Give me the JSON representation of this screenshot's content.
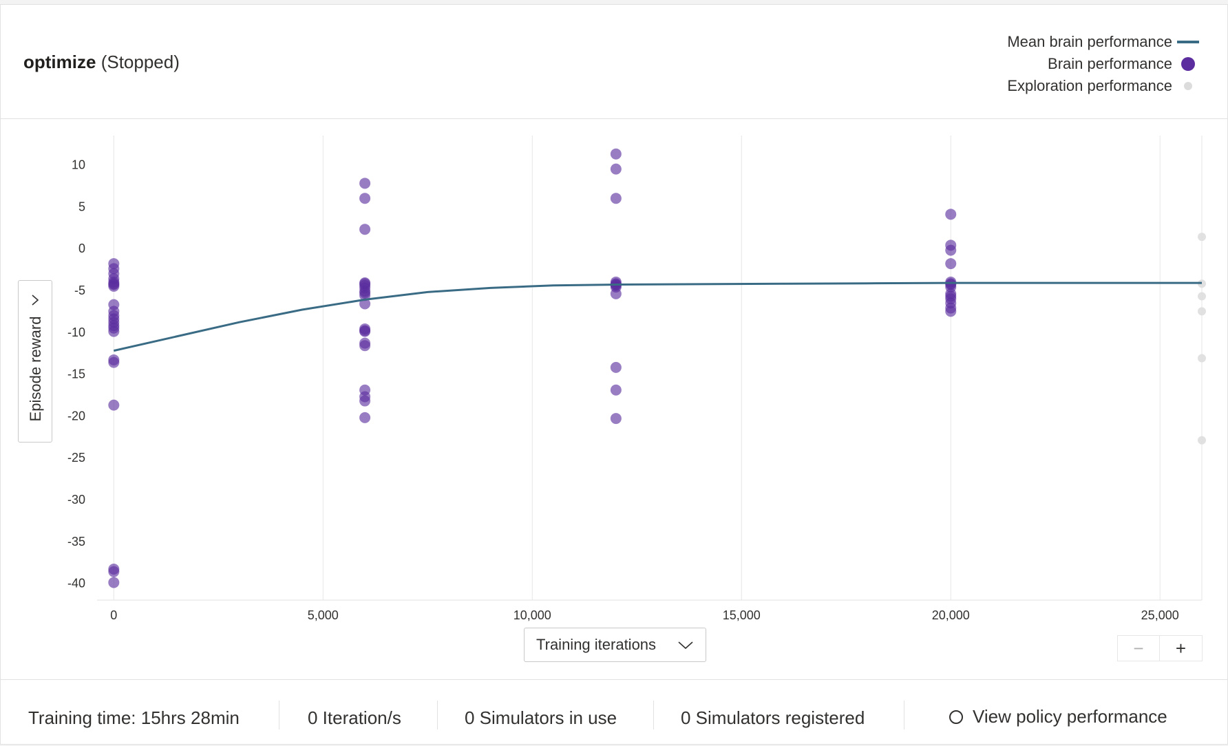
{
  "header": {
    "title": "optimize",
    "status": "(Stopped)"
  },
  "legend": [
    {
      "label": "Mean brain performance",
      "symbol": "line-icon",
      "color": "#3a6b85"
    },
    {
      "label": "Brain performance",
      "symbol": "dot-icon",
      "color": "#5b2d9e"
    },
    {
      "label": "Exploration performance",
      "symbol": "dot-icon",
      "color": "#dcdcdc"
    }
  ],
  "axes": {
    "y_label": "Episode reward",
    "x_select_label": "Training iterations"
  },
  "zoom": {
    "minus": "−",
    "plus": "+"
  },
  "footer": {
    "training_time": "Training time: 15hrs 28min",
    "iteration_rate": "0 Iteration/s",
    "simulators_in_use": "0 Simulators in use",
    "simulators_registered": "0 Simulators registered",
    "policy_link": "View policy performance"
  },
  "chart_data": {
    "type": "scatter",
    "xlabel": "Training iterations",
    "ylabel": "Episode reward",
    "xlim": [
      -400,
      26000
    ],
    "ylim": [
      -42,
      13.5
    ],
    "x_ticks": [
      0,
      5000,
      10000,
      15000,
      20000,
      25000
    ],
    "x_tick_labels": [
      "0",
      "5,000",
      "10,000",
      "15,000",
      "20,000",
      "25,000"
    ],
    "y_ticks": [
      10,
      5,
      0,
      -5,
      -10,
      -15,
      -20,
      -25,
      -30,
      -35,
      -40
    ],
    "grid": "vertical",
    "series": [
      {
        "name": "Mean brain performance",
        "kind": "line",
        "color": "#3a6b85",
        "x": [
          0,
          1500,
          3000,
          4500,
          6000,
          7500,
          9000,
          10500,
          12000,
          14000,
          16000,
          18000,
          20000,
          23000,
          26000
        ],
        "y": [
          -12.2,
          -10.5,
          -8.8,
          -7.3,
          -6.1,
          -5.2,
          -4.7,
          -4.4,
          -4.3,
          -4.25,
          -4.2,
          -4.15,
          -4.1,
          -4.1,
          -4.1
        ]
      },
      {
        "name": "Brain performance",
        "kind": "scatter",
        "color": "#5b2d9e",
        "x": [
          0,
          0,
          0,
          0,
          0,
          0,
          0,
          0,
          0,
          0,
          0,
          0,
          0,
          0,
          0,
          0,
          0,
          0,
          0,
          0,
          0,
          0,
          6000,
          6000,
          6000,
          6000,
          6000,
          6000,
          6000,
          6000,
          6000,
          6000,
          6000,
          6000,
          6000,
          6000,
          6000,
          6000,
          6000,
          6000,
          6000,
          6000,
          12000,
          12000,
          12000,
          12000,
          12000,
          12000,
          12000,
          12000,
          12000,
          12000,
          12000,
          12000,
          20000,
          20000,
          20000,
          20000,
          20000,
          20000,
          20000,
          20000,
          20000,
          20000,
          20000,
          20000,
          20000,
          20000
        ],
        "y": [
          -1.8,
          -2.4,
          -3.0,
          -3.6,
          -4.2,
          -4.5,
          -6.7,
          -7.5,
          -8.0,
          -8.4,
          -9.5,
          -9.9,
          -13.3,
          -13.6,
          -18.7,
          -38.3,
          -38.6,
          -39.9,
          -4.0,
          -4.3,
          -8.8,
          -9.2,
          7.8,
          6.0,
          2.3,
          -4.1,
          -4.4,
          -4.7,
          -5.1,
          -5.6,
          -6.6,
          -9.6,
          -9.9,
          -11.3,
          -11.6,
          -16.9,
          -17.7,
          -18.2,
          -20.2,
          -4.2,
          -5.3,
          -9.8,
          11.3,
          9.5,
          6.0,
          -4.0,
          -4.2,
          -4.4,
          -4.6,
          -5.4,
          -14.2,
          -16.9,
          -20.3,
          -4.3,
          4.1,
          0.4,
          -0.2,
          -1.8,
          -4.0,
          -4.3,
          -4.6,
          -5.4,
          -5.7,
          -6.0,
          -6.5,
          -7.1,
          -7.5,
          -4.2
        ]
      },
      {
        "name": "Exploration performance",
        "kind": "scatter",
        "color": "#dcdcdc",
        "x": [
          26000,
          26000,
          26000,
          26000,
          26000,
          26000
        ],
        "y": [
          1.4,
          -4.2,
          -5.7,
          -7.5,
          -13.1,
          -22.9
        ]
      }
    ]
  }
}
